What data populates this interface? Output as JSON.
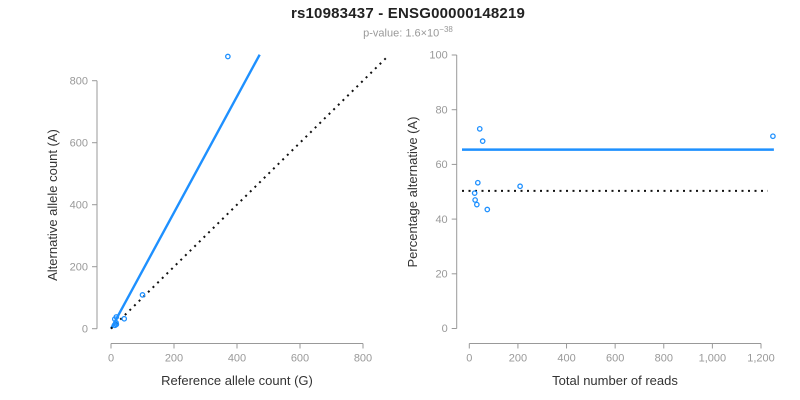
{
  "header": {
    "title": "rs10983437 - ENSG00000148219",
    "pvalue_prefix": "p-value: 1.6×10",
    "pvalue_exponent": "−38"
  },
  "colors": {
    "accent_blue": "#1E90FF",
    "dotted_line_black": "#111111",
    "axis_gray": "#999999",
    "tick_label_gray": "#999999",
    "axis_title_color": "#333333"
  },
  "chart_data": [
    {
      "type": "scatter",
      "panel": "left",
      "xlabel": "Reference allele count (G)",
      "ylabel": "Alternative allele count (A)",
      "xlim": [
        0,
        800
      ],
      "ylim": [
        0,
        800
      ],
      "grid": false,
      "xtick_values": [
        0,
        200,
        400,
        600,
        800
      ],
      "xtick_labels": [
        "0",
        "200",
        "400",
        "600",
        "800"
      ],
      "ytick_values": [
        0,
        200,
        400,
        600,
        800
      ],
      "ytick_labels": [
        "0",
        "200",
        "400",
        "600",
        "800"
      ],
      "points": [
        [
          12,
          31
        ],
        [
          17,
          38
        ],
        [
          16,
          19
        ],
        [
          11,
          11
        ],
        [
          13,
          11
        ],
        [
          17,
          14
        ],
        [
          42,
          32
        ],
        [
          100,
          109
        ],
        [
          371,
          878
        ]
      ],
      "lines": [
        {
          "name": "regression-line",
          "style": "solid",
          "x": [
            0,
            472
          ],
          "y": [
            0,
            884
          ]
        },
        {
          "name": "identity-line",
          "style": "dotted",
          "x": [
            0,
            878
          ],
          "y": [
            0,
            878
          ]
        }
      ]
    },
    {
      "type": "scatter",
      "panel": "right",
      "xlabel": "Total number of reads",
      "ylabel": "Percentage alternative (A)",
      "xlim": [
        0,
        1200
      ],
      "ylim": [
        0,
        100
      ],
      "grid": false,
      "xtick_values": [
        0,
        200,
        400,
        600,
        800,
        1000,
        1200
      ],
      "xtick_labels": [
        "0",
        "200",
        "400",
        "600",
        "800",
        "1,000",
        "1,200"
      ],
      "ytick_values": [
        0,
        20,
        40,
        60,
        80,
        100
      ],
      "ytick_labels": [
        "0",
        "20",
        "40",
        "60",
        "80",
        "100"
      ],
      "points": [
        [
          43,
          73
        ],
        [
          55,
          68.5
        ],
        [
          35,
          53.3
        ],
        [
          22,
          49.5
        ],
        [
          209,
          52
        ],
        [
          24,
          47
        ],
        [
          31,
          45.3
        ],
        [
          74,
          43.5
        ],
        [
          1249,
          70.3
        ]
      ],
      "lines": [
        {
          "name": "mean-percentage-line",
          "style": "solid",
          "x": [
            -30,
            1253
          ],
          "y": [
            65.4,
            65.4
          ]
        },
        {
          "name": "fifty-percent-line",
          "style": "dotted",
          "x": [
            -30,
            1228
          ],
          "y": [
            50.3,
            50.3
          ]
        }
      ]
    }
  ]
}
